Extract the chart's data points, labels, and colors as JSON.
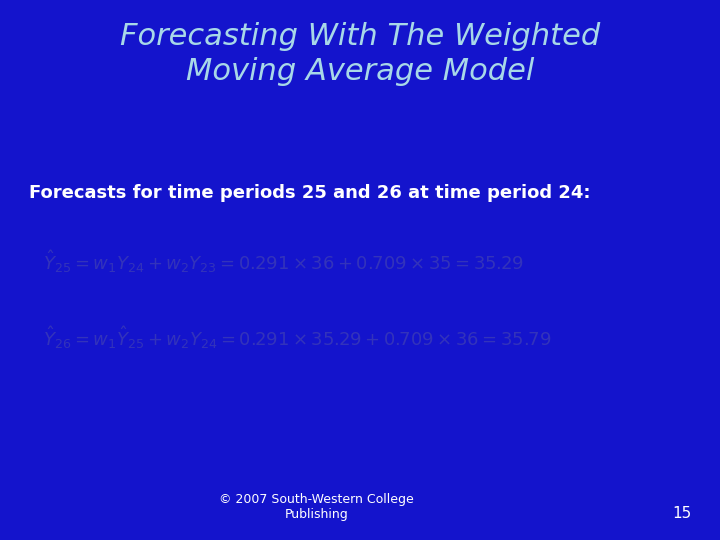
{
  "bg_color": "#1414CC",
  "title": "Forecasting With The Weighted\nMoving Average Model",
  "title_color": "#A8D8E8",
  "title_fontsize": 22,
  "subtitle": "Forecasts for time periods 25 and 26 at time period 24:",
  "subtitle_color": "#FFFFFF",
  "subtitle_fontsize": 13,
  "eq1": "$\\hat{Y}_{25} = w_1Y_{24} + w_2Y_{23} = 0.291\\times36 + 0.709\\times35 = 35.29$",
  "eq2": "$\\hat{Y}_{26} = w_1\\hat{Y}_{25} + w_2Y_{24} = 0.291\\times35.29 + 0.709\\times36 = 35.79$",
  "eq_color": "#3333BB",
  "eq_fontsize": 13,
  "footer_left": "© 2007 South-Western College\nPublishing",
  "footer_color": "#FFFFFF",
  "footer_fontsize": 9,
  "page_num": "15",
  "page_color": "#FFFFFF",
  "page_fontsize": 11
}
